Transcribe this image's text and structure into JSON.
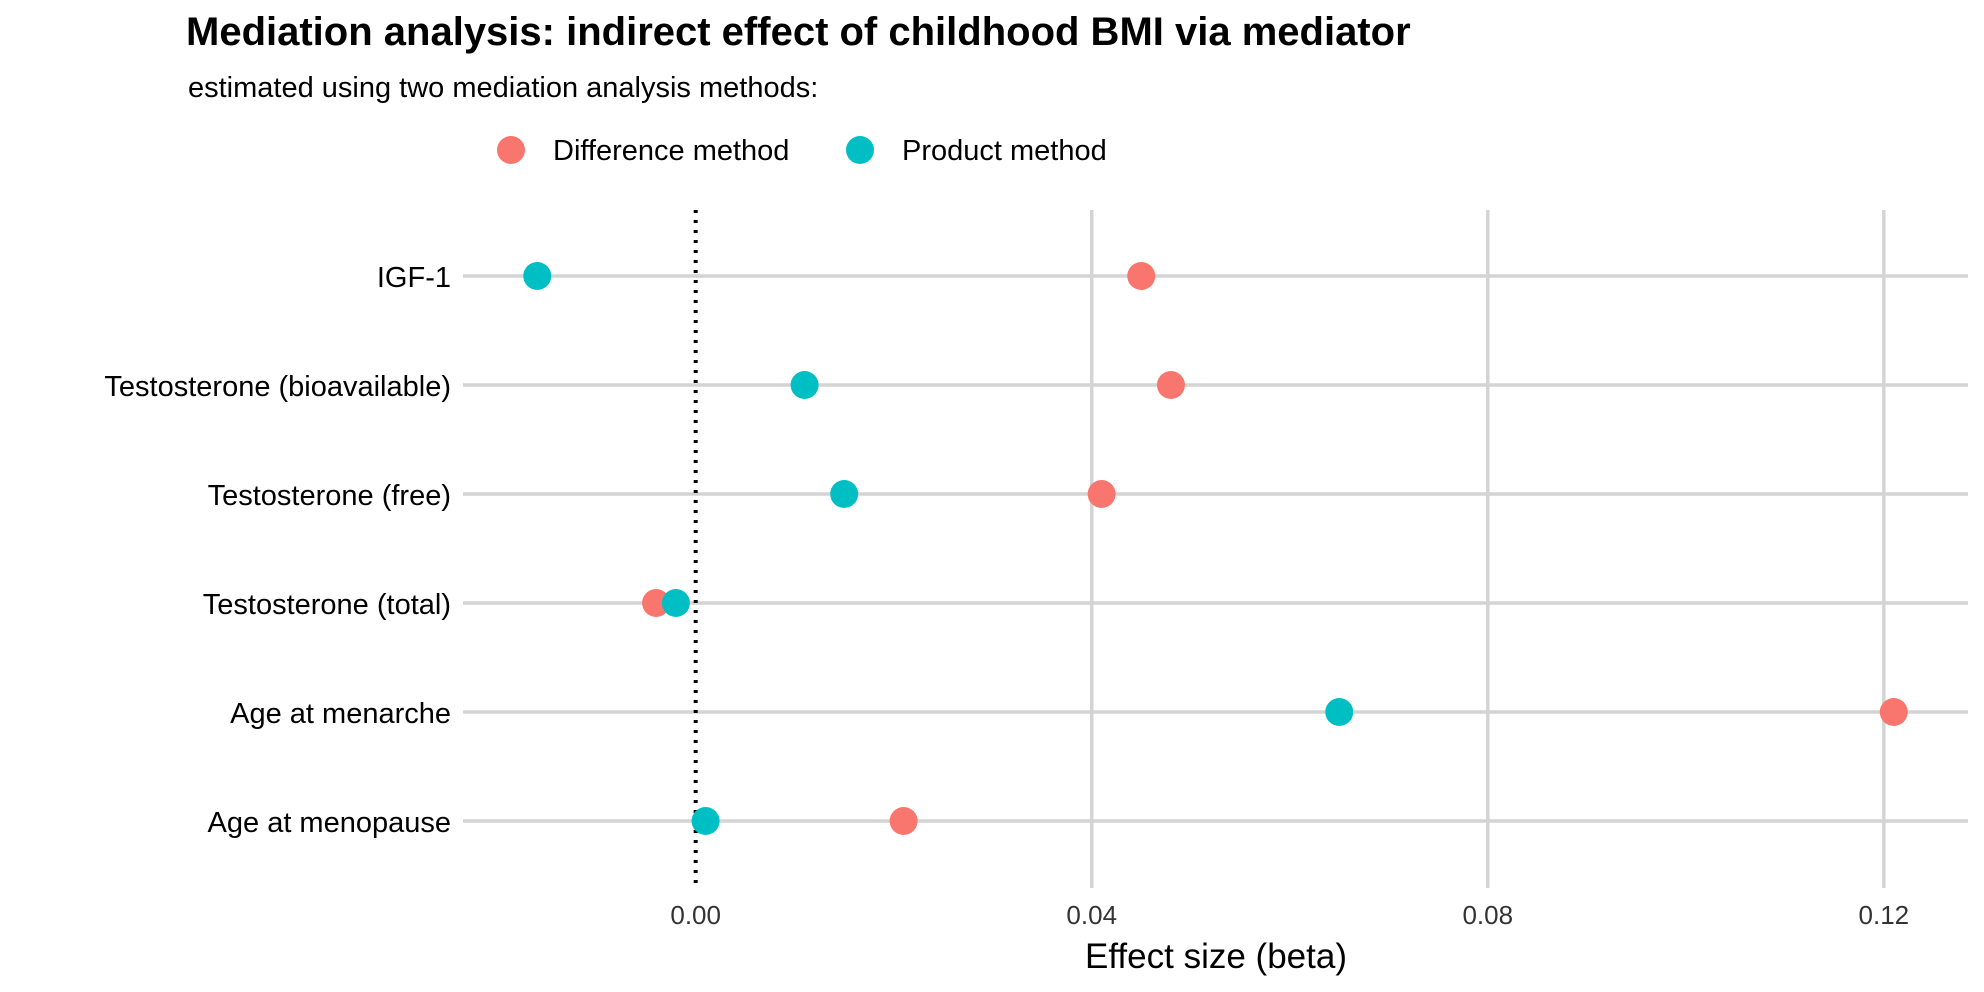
{
  "chart_data": {
    "type": "scatter",
    "title": "Mediation analysis: indirect effect of childhood BMI via mediator",
    "subtitle": "estimated using two mediation analysis methods:",
    "xlabel": "Effect size (beta)",
    "ylabel": "",
    "xlim": [
      -0.0235,
      0.1285
    ],
    "x_ticks": [
      0.0,
      0.04,
      0.08,
      0.12
    ],
    "x_tick_labels": [
      "0.00",
      "0.04",
      "0.08",
      "0.12"
    ],
    "reference_line": {
      "x": 0.0,
      "style": "dotted"
    },
    "grid": true,
    "legend_position": "top",
    "categories": [
      "IGF-1",
      "Testosterone (bioavailable)",
      "Testosterone (free)",
      "Testosterone (total)",
      "Age at menarche",
      "Age at menopause"
    ],
    "series": [
      {
        "name": "Difference method",
        "color": "#F8766D",
        "values": [
          0.045,
          0.048,
          0.041,
          -0.004,
          0.121,
          0.021
        ]
      },
      {
        "name": "Product method",
        "color": "#00BFC4",
        "values": [
          -0.016,
          0.011,
          0.015,
          -0.002,
          0.065,
          0.001
        ]
      }
    ]
  }
}
